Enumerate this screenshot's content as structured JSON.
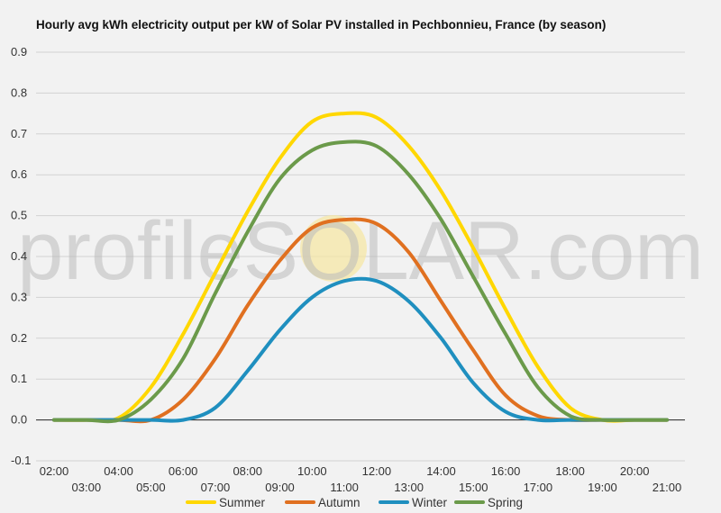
{
  "chart_data": {
    "type": "line",
    "title": "Hourly avg kWh electricity output per kW of Solar PV installed in Pechbonnieu, France (by season)",
    "watermark": "profileSOLAR.com",
    "xlabel": "",
    "ylabel": "",
    "ylim": [
      -0.1,
      0.9
    ],
    "yticks": [
      "-0.1",
      "0.0",
      "0.1",
      "0.2",
      "0.3",
      "0.4",
      "0.5",
      "0.6",
      "0.7",
      "0.8",
      "0.9"
    ],
    "xticks_upper": [
      "02:00",
      "04:00",
      "06:00",
      "08:00",
      "10:00",
      "12:00",
      "14:00",
      "16:00",
      "18:00",
      "20:00"
    ],
    "xticks_lower": [
      "03:00",
      "05:00",
      "07:00",
      "09:00",
      "11:00",
      "13:00",
      "15:00",
      "17:00",
      "19:00",
      "21:00"
    ],
    "grid": true,
    "legend_position": "bottom",
    "x": [
      "02:00",
      "03:00",
      "04:00",
      "05:00",
      "06:00",
      "07:00",
      "08:00",
      "09:00",
      "10:00",
      "11:00",
      "12:00",
      "13:00",
      "14:00",
      "15:00",
      "16:00",
      "17:00",
      "18:00",
      "19:00",
      "20:00",
      "21:00"
    ],
    "series": [
      {
        "name": "Summer",
        "color": "#ffd700",
        "values": [
          0,
          0,
          0.005,
          0.08,
          0.21,
          0.36,
          0.51,
          0.64,
          0.73,
          0.75,
          0.74,
          0.67,
          0.56,
          0.42,
          0.27,
          0.13,
          0.03,
          0,
          0,
          0
        ]
      },
      {
        "name": "Autumn",
        "color": "#e07020",
        "values": [
          0,
          0,
          0,
          0,
          0.05,
          0.15,
          0.28,
          0.39,
          0.47,
          0.49,
          0.48,
          0.41,
          0.29,
          0.17,
          0.06,
          0.01,
          0,
          0,
          0,
          0
        ]
      },
      {
        "name": "Winter",
        "color": "#1f8fbf",
        "values": [
          0,
          0,
          0,
          0,
          0,
          0.03,
          0.12,
          0.22,
          0.3,
          0.34,
          0.34,
          0.29,
          0.2,
          0.09,
          0.02,
          0,
          0,
          0,
          0,
          0
        ]
      },
      {
        "name": "Spring",
        "color": "#6b9a4a",
        "values": [
          0,
          0,
          0,
          0.05,
          0.15,
          0.31,
          0.46,
          0.59,
          0.66,
          0.68,
          0.67,
          0.6,
          0.49,
          0.35,
          0.21,
          0.08,
          0.01,
          0,
          0,
          0
        ]
      }
    ]
  }
}
